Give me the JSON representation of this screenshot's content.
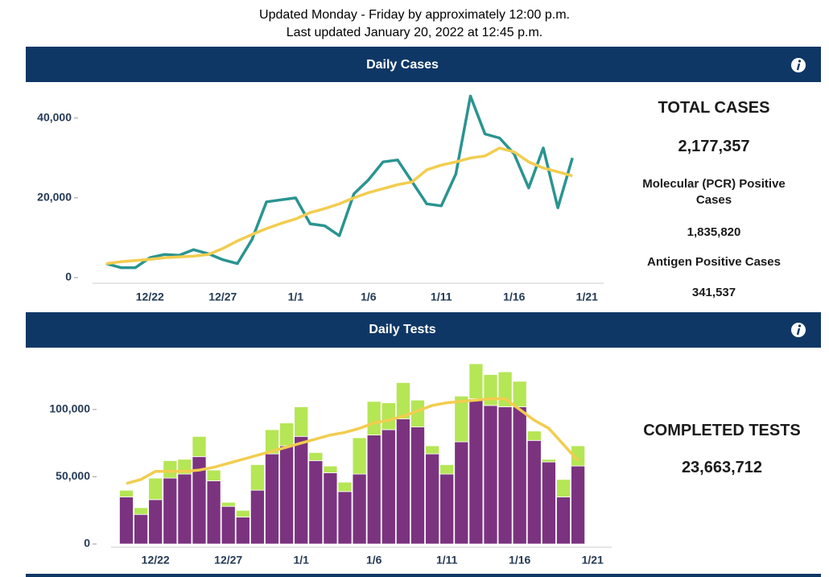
{
  "header": {
    "line1": "Updated Monday - Friday by approximately 12:00 p.m.",
    "line2": "Last updated January 20, 2022 at 12:45 p.m."
  },
  "panels": [
    {
      "title": "Daily Cases",
      "stats": [
        "TOTAL CASES",
        "2,177,357",
        "Molecular (PCR) Positive Cases",
        "1,835,820",
        "Antigen Positive Cases",
        "341,537"
      ]
    },
    {
      "title": "Daily Tests",
      "stats": [
        "COMPLETED TESTS",
        "23,663,712"
      ]
    }
  ],
  "chart_data": [
    {
      "type": "line",
      "categories": [
        null,
        null,
        null,
        "12/22",
        null,
        null,
        null,
        null,
        "12/27",
        null,
        null,
        null,
        null,
        "1/1",
        null,
        null,
        null,
        null,
        "1/6",
        null,
        null,
        null,
        null,
        "1/11",
        null,
        null,
        null,
        null,
        "1/16",
        null,
        null,
        null,
        null,
        "1/21"
      ],
      "series": [
        {
          "color": "#2a9490",
          "values": [
            3500,
            2500,
            2500,
            5000,
            5800,
            5600,
            7000,
            6000,
            4500,
            3500,
            9500,
            19000,
            19500,
            20000,
            13500,
            13000,
            10500,
            21000,
            24500,
            29000,
            29500,
            24000,
            18500,
            18000,
            26000,
            45500,
            36000,
            35000,
            31000,
            22500,
            32500,
            17500,
            30000,
            null
          ]
        },
        {
          "color": "#f2cd4f",
          "values": [
            3500,
            4000,
            4300,
            4600,
            5000,
            5200,
            5400,
            5800,
            7300,
            9200,
            10800,
            12300,
            13600,
            14700,
            16300,
            17300,
            18500,
            20000,
            21300,
            22300,
            23300,
            24000,
            27000,
            28200,
            29000,
            30000,
            30500,
            32500,
            31500,
            29000,
            27500,
            26500,
            25500,
            null
          ]
        }
      ],
      "ylim": [
        0,
        47000
      ],
      "yticks": [
        0,
        {
          "value": 20000,
          "label": "20,000"
        },
        {
          "value": 40000,
          "label": "40,000"
        }
      ]
    },
    {
      "type": "bar",
      "stacked": true,
      "categories": [
        null,
        null,
        "12/22",
        null,
        null,
        null,
        null,
        "12/27",
        null,
        null,
        null,
        null,
        "1/1",
        null,
        null,
        null,
        null,
        "1/6",
        null,
        null,
        null,
        null,
        "1/11",
        null,
        null,
        null,
        null,
        "1/16",
        null,
        null,
        null,
        null,
        "1/21"
      ],
      "series": [
        {
          "type": "bar",
          "color": "#7b337f",
          "values": [
            35000,
            22000,
            33000,
            49000,
            52000,
            65000,
            47000,
            28000,
            20000,
            40000,
            67000,
            73000,
            80000,
            62000,
            53000,
            39000,
            52000,
            81000,
            85000,
            93000,
            87000,
            67000,
            52000,
            76000,
            108000,
            103000,
            102000,
            102000,
            77000,
            61000,
            35000,
            58000,
            null
          ]
        },
        {
          "type": "bar",
          "color": "#b5e655",
          "values": [
            5000,
            5000,
            16000,
            13000,
            11000,
            15000,
            8000,
            3000,
            5000,
            19000,
            18000,
            17000,
            22000,
            6000,
            5000,
            7000,
            27000,
            25000,
            20000,
            27000,
            20000,
            6000,
            7000,
            34000,
            26000,
            23000,
            26000,
            19000,
            7000,
            2000,
            13000,
            15000,
            null
          ]
        },
        {
          "type": "line",
          "color": "#f2cd4f",
          "values": [
            45000,
            48000,
            54000,
            54000,
            54000,
            55000,
            57000,
            60000,
            63000,
            66000,
            69000,
            72000,
            75000,
            78000,
            81000,
            83000,
            86000,
            90000,
            92000,
            95000,
            99000,
            103000,
            105000,
            106000,
            107000,
            108000,
            108000,
            100000,
            92000,
            86000,
            74000,
            62000,
            null
          ]
        }
      ],
      "ylim": [
        0,
        140000
      ],
      "yticks": [
        0,
        {
          "value": 50000,
          "label": "50,000"
        },
        {
          "value": 100000,
          "label": "100,000"
        }
      ]
    }
  ]
}
